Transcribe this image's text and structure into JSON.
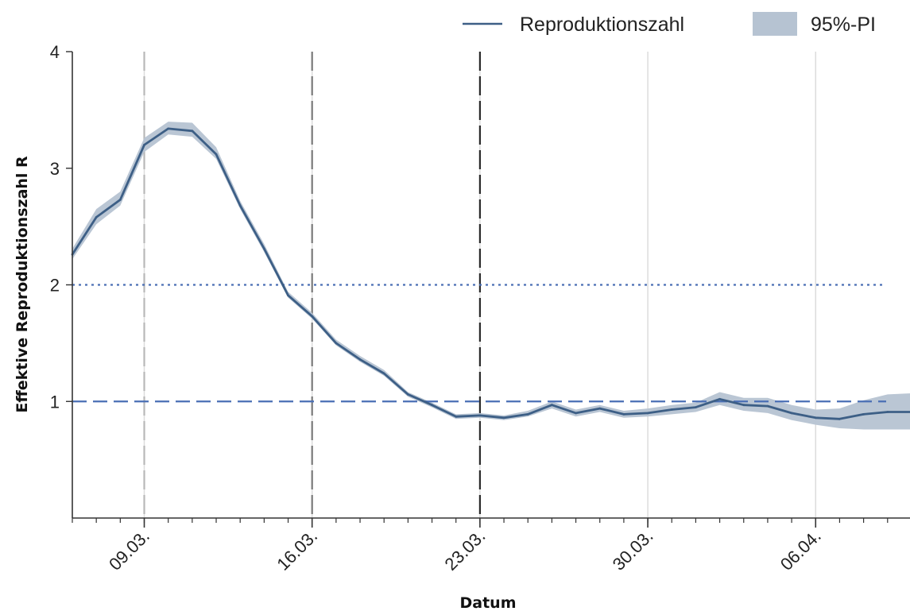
{
  "chart_data": {
    "type": "line",
    "xlabel": "Datum",
    "ylabel": "Effektive Reproduktionszahl R",
    "ylim": [
      0,
      4
    ],
    "yticks": [
      1,
      2,
      3,
      4
    ],
    "xlim": [
      "2020-03-06",
      "2020-04-10"
    ],
    "xticks": [
      {
        "date": "2020-03-09",
        "label": "09.03."
      },
      {
        "date": "2020-03-16",
        "label": "16.03."
      },
      {
        "date": "2020-03-23",
        "label": "23.03."
      },
      {
        "date": "2020-03-30",
        "label": "30.03."
      },
      {
        "date": "2020-04-06",
        "label": "06.04."
      }
    ],
    "reference_lines": [
      {
        "y": 2,
        "style": "dotted",
        "color": "#4a6fb5"
      },
      {
        "y": 1,
        "style": "dashed",
        "color": "#4a6fb5"
      }
    ],
    "vertical_markers": [
      {
        "date": "2020-03-09",
        "style": "dashed",
        "color": "#b8b8b8"
      },
      {
        "date": "2020-03-16",
        "style": "dashed",
        "color": "#7a7a7a"
      },
      {
        "date": "2020-03-23",
        "style": "dashed",
        "color": "#2a2a2a"
      }
    ],
    "legend": {
      "position": "top-right",
      "items": [
        "Reproduktionszahl",
        "95%-PI"
      ]
    },
    "colors": {
      "line": "#3d5f86",
      "band": "#b6c3d2",
      "axis": "#333333",
      "grid": "#dcdcdc"
    },
    "series": [
      {
        "name": "Reproduktionszahl",
        "x": [
          "2020-03-06",
          "2020-03-07",
          "2020-03-08",
          "2020-03-09",
          "2020-03-10",
          "2020-03-11",
          "2020-03-12",
          "2020-03-13",
          "2020-03-14",
          "2020-03-15",
          "2020-03-16",
          "2020-03-17",
          "2020-03-18",
          "2020-03-19",
          "2020-03-20",
          "2020-03-21",
          "2020-03-22",
          "2020-03-23",
          "2020-03-24",
          "2020-03-25",
          "2020-03-26",
          "2020-03-27",
          "2020-03-28",
          "2020-03-29",
          "2020-03-30",
          "2020-03-31",
          "2020-04-01",
          "2020-04-02",
          "2020-04-03",
          "2020-04-04",
          "2020-04-05",
          "2020-04-06",
          "2020-04-07",
          "2020-04-08",
          "2020-04-09",
          "2020-04-10"
        ],
        "values": [
          2.26,
          2.58,
          2.73,
          3.2,
          3.34,
          3.32,
          3.12,
          2.68,
          2.31,
          1.91,
          1.73,
          1.5,
          1.36,
          1.24,
          1.06,
          0.97,
          0.87,
          0.88,
          0.86,
          0.89,
          0.97,
          0.9,
          0.94,
          0.89,
          0.9,
          0.93,
          0.95,
          1.02,
          0.97,
          0.96,
          0.9,
          0.86,
          0.85,
          0.89,
          0.91,
          0.91
        ],
        "lower": [
          2.22,
          2.52,
          2.68,
          3.14,
          3.29,
          3.27,
          3.08,
          2.65,
          2.28,
          1.89,
          1.71,
          1.48,
          1.34,
          1.22,
          1.04,
          0.95,
          0.85,
          0.86,
          0.84,
          0.87,
          0.94,
          0.87,
          0.91,
          0.86,
          0.87,
          0.89,
          0.91,
          0.97,
          0.92,
          0.9,
          0.84,
          0.8,
          0.77,
          0.76,
          0.76,
          0.76
        ],
        "upper": [
          2.31,
          2.65,
          2.8,
          3.26,
          3.4,
          3.39,
          3.18,
          2.72,
          2.35,
          1.94,
          1.76,
          1.53,
          1.39,
          1.27,
          1.08,
          0.99,
          0.89,
          0.9,
          0.88,
          0.92,
          1.0,
          0.93,
          0.97,
          0.92,
          0.94,
          0.97,
          0.99,
          1.08,
          1.03,
          1.03,
          0.97,
          0.93,
          0.94,
          1.01,
          1.06,
          1.07
        ]
      }
    ]
  }
}
